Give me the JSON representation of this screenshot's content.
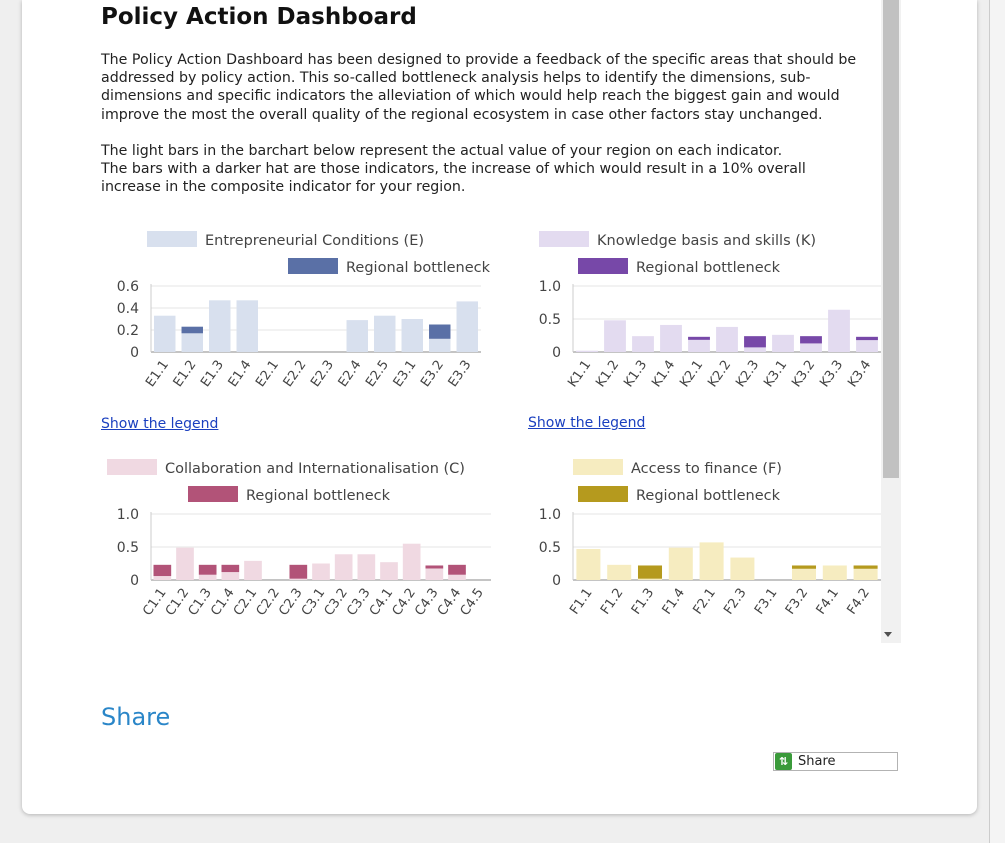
{
  "page": {
    "title": "Policy Action Dashboard",
    "intro_p1": "The Policy Action Dashboard has been designed to provide a feedback of the specific areas that should be addressed by policy action. This so-called bottleneck analysis helps to identify the dimensions, sub-dimensions and specific indicators the alleviation of which would help reach the biggest gain and would improve the most the overall quality of the regional ecosystem in case other factors stay unchanged.",
    "intro_p2a": "The light bars in the barchart below represent the actual value of your region on each indicator.",
    "intro_p2b": "The bars with a darker hat are those indicators, the increase of which would result in a 10% overall increase in the composite indicator for your region.",
    "show_legend": "Show the legend",
    "share_heading": "Share",
    "share_button": "Share",
    "share_icon": "share-icon"
  },
  "chart_data": [
    {
      "type": "bar",
      "title": "",
      "legend": [
        "Entrepreneurial Conditions (E)",
        "Regional bottleneck"
      ],
      "colors": {
        "light": "#d8e0ee",
        "dark": "#5a70a6"
      },
      "categories": [
        "E1.1",
        "E1.2",
        "E1.3",
        "E1.4",
        "E2.1",
        "E2.2",
        "E2.3",
        "E2.4",
        "E2.5",
        "E3.1",
        "E3.2",
        "E3.3"
      ],
      "values": [
        0.33,
        0.17,
        0.47,
        0.47,
        0,
        0,
        0,
        0.29,
        0.33,
        0.3,
        0.12,
        0.46
      ],
      "bottleneck": [
        0,
        0.23,
        0,
        0,
        0,
        0,
        0,
        0,
        0,
        0,
        0.25,
        0
      ],
      "ylim": [
        0,
        0.6
      ],
      "yticks": [
        {
          "v": 0,
          "t": "0"
        },
        {
          "v": 0.2,
          "t": "0.2"
        },
        {
          "v": 0.4,
          "t": "0.4"
        },
        {
          "v": 0.6,
          "t": "0.6"
        }
      ]
    },
    {
      "type": "bar",
      "title": "",
      "legend": [
        "Knowledge basis and skills (K)",
        "Regional bottleneck"
      ],
      "colors": {
        "light": "#e3dbf0",
        "dark": "#7748a8"
      },
      "categories": [
        "K1.1",
        "K1.2",
        "K1.3",
        "K1.4",
        "K2.1",
        "K2.2",
        "K2.3",
        "K3.1",
        "K3.2",
        "K3.3",
        "K3.4"
      ],
      "values": [
        0.02,
        0.48,
        0.24,
        0.41,
        0.2,
        0.38,
        0.07,
        0.26,
        0.13,
        0.64,
        0.18
      ],
      "bottleneck": [
        0,
        0,
        0,
        0,
        0.23,
        0,
        0.24,
        0,
        0.24,
        0,
        0.23
      ],
      "ylim": [
        0,
        1.0
      ],
      "yticks": [
        {
          "v": 0,
          "t": "0"
        },
        {
          "v": 0.5,
          "t": "0.5"
        },
        {
          "v": 1,
          "t": "1.0"
        }
      ]
    },
    {
      "type": "bar",
      "title": "",
      "legend": [
        "Collaboration and Internationalisation (C)",
        "Regional bottleneck"
      ],
      "colors": {
        "light": "#f0d9e2",
        "dark": "#b25378"
      },
      "categories": [
        "C1.1",
        "C1.2",
        "C1.3",
        "C1.4",
        "C2.1",
        "C2.2",
        "C2.3",
        "C3.1",
        "C3.2",
        "C3.3",
        "C4.1",
        "C4.2",
        "C4.3",
        "C4.4",
        "C4.5"
      ],
      "values": [
        0.06,
        0.49,
        0.08,
        0.12,
        0.29,
        0,
        0.02,
        0.25,
        0.39,
        0.39,
        0.27,
        0.55,
        0.2,
        0.08,
        0
      ],
      "bottleneck": [
        0.23,
        0,
        0.23,
        0.23,
        0,
        0,
        0.23,
        0,
        0,
        0,
        0,
        0,
        0.22,
        0.23,
        0
      ],
      "ylim": [
        0,
        1.0
      ],
      "yticks": [
        {
          "v": 0,
          "t": "0"
        },
        {
          "v": 0.5,
          "t": "0.5"
        },
        {
          "v": 1,
          "t": "1.0"
        }
      ]
    },
    {
      "type": "bar",
      "title": "",
      "legend": [
        "Access to finance (F)",
        "Regional bottleneck"
      ],
      "colors": {
        "light": "#f6ecc0",
        "dark": "#b59a1e"
      },
      "categories": [
        "F1.1",
        "F1.2",
        "F1.3",
        "F1.4",
        "F2.1",
        "F2.3",
        "F3.1",
        "F3.2",
        "F4.1",
        "F4.2"
      ],
      "values": [
        0.47,
        0.23,
        0.02,
        0.49,
        0.57,
        0.34,
        0,
        0.17,
        0.22,
        0.17
      ],
      "bottleneck": [
        0,
        0,
        0.22,
        0,
        0,
        0,
        0,
        0.22,
        0,
        0.22
      ],
      "ylim": [
        0,
        1.0
      ],
      "yticks": [
        {
          "v": 0,
          "t": "0"
        },
        {
          "v": 0.5,
          "t": "0.5"
        },
        {
          "v": 1,
          "t": "1.0"
        }
      ]
    }
  ]
}
